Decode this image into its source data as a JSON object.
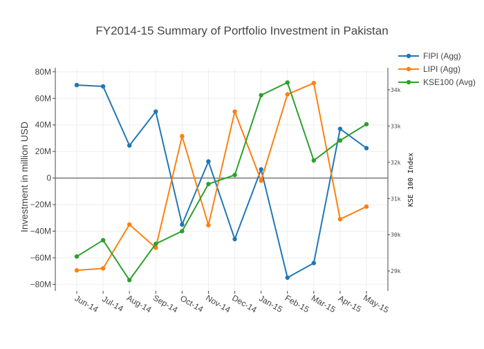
{
  "chart_data": {
    "type": "line",
    "title": "FY2014-15 Summary of Portfolio Investment in Pakistan",
    "ylabel": "Investment in million USD",
    "y2label": "KSE 100 Index",
    "categories": [
      "Jun-14",
      "Jul-14",
      "Aug-14",
      "Sep-14",
      "Oct-14",
      "Nov-14",
      "Dec-14",
      "Jan-15",
      "Feb-15",
      "Mar-15",
      "Apr-15",
      "May-15"
    ],
    "ylim": [
      -85,
      82
    ],
    "yticks": [
      -80,
      -60,
      -40,
      -20,
      0,
      20,
      40,
      60,
      80
    ],
    "ytick_labels": [
      "−80M",
      "−60M",
      "−40M",
      "−20M",
      "0",
      "20M",
      "40M",
      "60M",
      "80M"
    ],
    "y2lim": [
      28450,
      34570
    ],
    "y2ticks": [
      29000,
      30000,
      31000,
      32000,
      33000,
      34000
    ],
    "y2tick_labels": [
      "29k",
      "30k",
      "31k",
      "32k",
      "33k",
      "34k"
    ],
    "grid": true,
    "legend_position": "top-right",
    "series": [
      {
        "name": "FIPI (Agg)",
        "color": "#1f77b4",
        "axis": "y",
        "values": [
          70,
          69,
          24.5,
          50,
          -35,
          12.5,
          -46,
          6.5,
          -75,
          -64,
          37,
          22.5
        ]
      },
      {
        "name": "LIPI (Agg)",
        "color": "#ff7f0e",
        "axis": "y",
        "values": [
          -69.5,
          -68,
          -35,
          -52.5,
          31.5,
          -35.5,
          50,
          -2,
          63,
          71.5,
          -31,
          -21.5
        ]
      },
      {
        "name": "KSE100 (Avg)",
        "color": "#2ca02c",
        "axis": "y2",
        "values": [
          29400,
          29850,
          28750,
          29750,
          30100,
          31400,
          31650,
          33850,
          34200,
          32050,
          32600,
          33050
        ]
      }
    ]
  }
}
